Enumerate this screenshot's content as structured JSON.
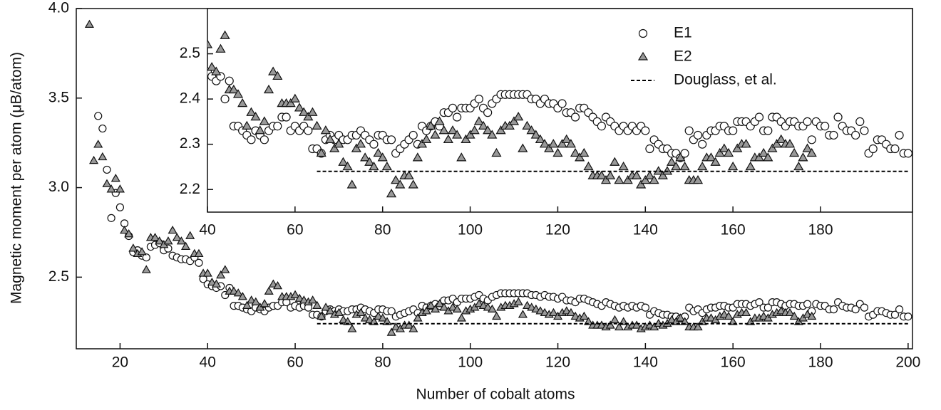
{
  "chart_data": {
    "type": "scatter",
    "xlabel": "Number of cobalt atoms",
    "ylabel": "Magnetic moment per atom (μB/atom)",
    "xlim": [
      10,
      201
    ],
    "ylim": [
      2.1,
      4.0
    ],
    "xticks": [
      20,
      40,
      60,
      80,
      100,
      120,
      140,
      160,
      180,
      200
    ],
    "yticks": [
      2.5,
      {
        "value": 3,
        "label": "3.0"
      },
      3.5,
      {
        "value": 4,
        "label": "4.0"
      }
    ],
    "series": [
      {
        "name": "E1",
        "marker": "circle",
        "color": "#ffffff",
        "x": [
          15,
          16,
          17,
          18,
          19,
          20,
          21,
          22,
          23,
          24,
          25,
          26,
          27,
          28,
          29,
          30,
          31,
          32,
          33,
          34,
          35,
          36,
          37,
          38,
          39,
          40,
          41,
          42,
          43,
          44,
          45,
          46,
          47,
          48,
          49,
          50,
          51,
          52,
          53,
          54,
          55,
          56,
          57,
          58,
          59,
          60,
          61,
          62,
          63,
          64,
          65,
          66,
          67,
          68,
          69,
          70,
          71,
          72,
          73,
          74,
          75,
          76,
          77,
          78,
          79,
          80,
          81,
          82,
          83,
          84,
          85,
          86,
          87,
          88,
          89,
          90,
          91,
          92,
          93,
          94,
          95,
          96,
          97,
          98,
          99,
          100,
          101,
          102,
          103,
          104,
          105,
          106,
          107,
          108,
          109,
          110,
          111,
          112,
          113,
          114,
          115,
          116,
          117,
          118,
          119,
          120,
          121,
          122,
          123,
          124,
          125,
          126,
          127,
          128,
          129,
          130,
          131,
          132,
          133,
          134,
          135,
          136,
          137,
          138,
          139,
          140,
          141,
          142,
          143,
          144,
          145,
          146,
          147,
          148,
          149,
          150,
          151,
          152,
          153,
          154,
          155,
          156,
          157,
          158,
          159,
          160,
          161,
          162,
          163,
          164,
          165,
          166,
          167,
          168,
          169,
          170,
          171,
          172,
          173,
          174,
          175,
          176,
          177,
          178,
          179,
          180,
          181,
          182,
          183,
          184,
          185,
          186,
          187,
          188,
          189,
          190,
          191,
          192,
          193,
          194,
          195,
          196,
          197,
          198,
          199,
          200
        ],
        "values": [
          3.4,
          3.33,
          3.1,
          2.83,
          2.97,
          2.89,
          2.8,
          2.73,
          2.64,
          2.65,
          2.62,
          2.61,
          2.67,
          2.68,
          2.69,
          2.65,
          2.66,
          2.62,
          2.61,
          2.6,
          2.6,
          2.59,
          2.61,
          2.58,
          2.49,
          2.46,
          2.45,
          2.44,
          2.45,
          2.4,
          2.44,
          2.34,
          2.34,
          2.33,
          2.32,
          2.31,
          2.33,
          2.32,
          2.31,
          2.33,
          2.34,
          2.34,
          2.36,
          2.36,
          2.33,
          2.34,
          2.33,
          2.34,
          2.33,
          2.29,
          2.29,
          2.28,
          2.31,
          2.32,
          2.31,
          2.32,
          2.31,
          2.31,
          2.32,
          2.32,
          2.33,
          2.32,
          2.31,
          2.3,
          2.32,
          2.32,
          2.31,
          2.31,
          2.28,
          2.29,
          2.3,
          2.31,
          2.32,
          2.3,
          2.34,
          2.33,
          2.34,
          2.35,
          2.34,
          2.37,
          2.37,
          2.38,
          2.36,
          2.38,
          2.38,
          2.38,
          2.39,
          2.4,
          2.38,
          2.37,
          2.39,
          2.4,
          2.41,
          2.41,
          2.41,
          2.41,
          2.41,
          2.41,
          2.41,
          2.4,
          2.4,
          2.39,
          2.4,
          2.39,
          2.39,
          2.38,
          2.39,
          2.37,
          2.37,
          2.36,
          2.38,
          2.38,
          2.37,
          2.36,
          2.35,
          2.34,
          2.36,
          2.35,
          2.34,
          2.33,
          2.34,
          2.33,
          2.34,
          2.33,
          2.34,
          2.33,
          2.29,
          2.31,
          2.3,
          2.29,
          2.29,
          2.28,
          2.28,
          2.27,
          2.28,
          2.33,
          2.31,
          2.32,
          2.3,
          2.32,
          2.33,
          2.33,
          2.34,
          2.34,
          2.33,
          2.33,
          2.35,
          2.35,
          2.35,
          2.34,
          2.35,
          2.36,
          2.33,
          2.33,
          2.36,
          2.36,
          2.35,
          2.34,
          2.35,
          2.35,
          2.34,
          2.34,
          2.35,
          2.31,
          2.35,
          2.34,
          2.34,
          2.32,
          2.32,
          2.36,
          2.34,
          2.33,
          2.33,
          2.32,
          2.35,
          2.33,
          2.28,
          2.29,
          2.31,
          2.31,
          2.3,
          2.29,
          2.29,
          2.32,
          2.28,
          2.28
        ]
      },
      {
        "name": "E2",
        "marker": "triangle",
        "color": "#999999",
        "x": [
          13,
          14,
          15,
          16,
          17,
          18,
          19,
          20,
          21,
          22,
          23,
          24,
          25,
          26,
          27,
          28,
          29,
          30,
          31,
          32,
          33,
          34,
          35,
          36,
          37,
          38,
          39,
          40,
          41,
          42,
          43,
          44,
          45,
          46,
          47,
          48,
          49,
          50,
          51,
          52,
          53,
          54,
          55,
          56,
          57,
          58,
          59,
          60,
          61,
          62,
          63,
          64,
          65,
          66,
          67,
          68,
          69,
          70,
          71,
          72,
          73,
          74,
          75,
          76,
          77,
          78,
          79,
          80,
          81,
          82,
          83,
          84,
          85,
          86,
          87,
          88,
          89,
          90,
          91,
          92,
          93,
          94,
          95,
          96,
          97,
          98,
          99,
          100,
          101,
          102,
          103,
          104,
          105,
          106,
          107,
          108,
          109,
          110,
          111,
          112,
          113,
          114,
          115,
          116,
          117,
          118,
          119,
          120,
          121,
          122,
          123,
          124,
          125,
          126,
          127,
          128,
          129,
          130,
          131,
          132,
          133,
          134,
          135,
          136,
          137,
          138,
          139,
          140,
          141,
          142,
          143,
          144,
          145,
          146,
          147,
          148,
          149,
          150,
          151,
          152,
          153,
          154,
          155,
          156,
          157,
          158,
          159,
          160,
          161,
          162,
          163,
          164,
          165,
          166,
          167,
          168,
          169,
          170,
          171,
          172,
          173,
          174,
          175,
          176,
          177,
          178
        ],
        "values": [
          3.91,
          3.15,
          3.24,
          3.17,
          3.02,
          2.99,
          3.05,
          2.99,
          2.76,
          2.74,
          2.66,
          2.63,
          2.64,
          2.54,
          2.72,
          2.72,
          2.7,
          2.68,
          2.7,
          2.76,
          2.72,
          2.7,
          2.67,
          2.73,
          2.63,
          2.63,
          2.52,
          2.52,
          2.47,
          2.46,
          2.51,
          2.54,
          2.42,
          2.42,
          2.41,
          2.39,
          2.34,
          2.37,
          2.36,
          2.33,
          2.35,
          2.42,
          2.46,
          2.45,
          2.39,
          2.39,
          2.39,
          2.4,
          2.38,
          2.37,
          2.36,
          2.37,
          2.34,
          2.28,
          2.33,
          2.31,
          2.29,
          2.3,
          2.26,
          2.25,
          2.21,
          2.29,
          2.3,
          2.27,
          2.26,
          2.25,
          2.28,
          2.27,
          2.25,
          2.19,
          2.22,
          2.21,
          2.23,
          2.23,
          2.21,
          2.27,
          2.3,
          2.31,
          2.34,
          2.32,
          2.35,
          2.33,
          2.31,
          2.33,
          2.32,
          2.27,
          2.31,
          2.32,
          2.33,
          2.35,
          2.34,
          2.33,
          2.32,
          2.28,
          2.33,
          2.34,
          2.34,
          2.35,
          2.36,
          2.29,
          2.34,
          2.33,
          2.32,
          2.31,
          2.3,
          2.29,
          2.3,
          2.28,
          2.3,
          2.31,
          2.3,
          2.28,
          2.27,
          2.28,
          2.25,
          2.23,
          2.23,
          2.23,
          2.22,
          2.23,
          2.26,
          2.22,
          2.25,
          2.22,
          2.23,
          2.23,
          2.21,
          2.22,
          2.23,
          2.22,
          2.24,
          2.23,
          2.24,
          2.26,
          2.25,
          2.27,
          2.25,
          2.22,
          2.22,
          2.22,
          2.25,
          2.27,
          2.27,
          2.26,
          2.28,
          2.29,
          2.28,
          2.25,
          2.29,
          2.3,
          2.3,
          2.25,
          2.27,
          2.27,
          2.28,
          2.27,
          2.29,
          2.3,
          2.31,
          2.3,
          2.3,
          2.28,
          2.25,
          2.27,
          2.29,
          2.28
        ]
      },
      {
        "name": "Douglass, et al.",
        "line": "dashed",
        "color": "#000000",
        "x": [
          65,
          200
        ],
        "values": [
          2.24,
          2.24
        ]
      }
    ],
    "inset": {
      "xlim": [
        40,
        201
      ],
      "ylim": [
        2.15,
        2.6
      ],
      "xticks": [
        40,
        60,
        80,
        100,
        120,
        140,
        160,
        180
      ],
      "yticks": [
        2.2,
        2.3,
        2.4,
        2.5
      ]
    }
  }
}
